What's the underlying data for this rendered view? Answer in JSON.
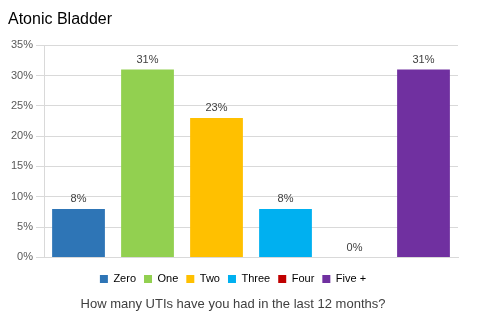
{
  "chart_data": {
    "type": "bar",
    "title": "Atonic Bladder",
    "x_label": "How many UTIs have you had in the last 12 months?",
    "categories": [
      "Zero",
      "One",
      "Two",
      "Three",
      "Four",
      "Five +"
    ],
    "values": [
      8,
      31,
      23,
      8,
      0,
      31
    ],
    "value_labels": [
      "8%",
      "31%",
      "23%",
      "8%",
      "0%",
      "31%"
    ],
    "colors": [
      "#2e75b6",
      "#92d050",
      "#ffc000",
      "#00b0f0",
      "#c00000",
      "#7030a0"
    ],
    "ylim": [
      0,
      35
    ],
    "yticks": [
      {
        "value": 0,
        "label": "0%"
      },
      {
        "value": 5,
        "label": "5%"
      },
      {
        "value": 10,
        "label": "10%"
      },
      {
        "value": 15,
        "label": "15%"
      },
      {
        "value": 20,
        "label": "20%"
      },
      {
        "value": 25,
        "label": "25%"
      },
      {
        "value": 30,
        "label": "30%"
      },
      {
        "value": 35,
        "label": "35%"
      }
    ],
    "grid": true,
    "legend": "bottom",
    "data_labels": true,
    "tick_labels": "y"
  }
}
